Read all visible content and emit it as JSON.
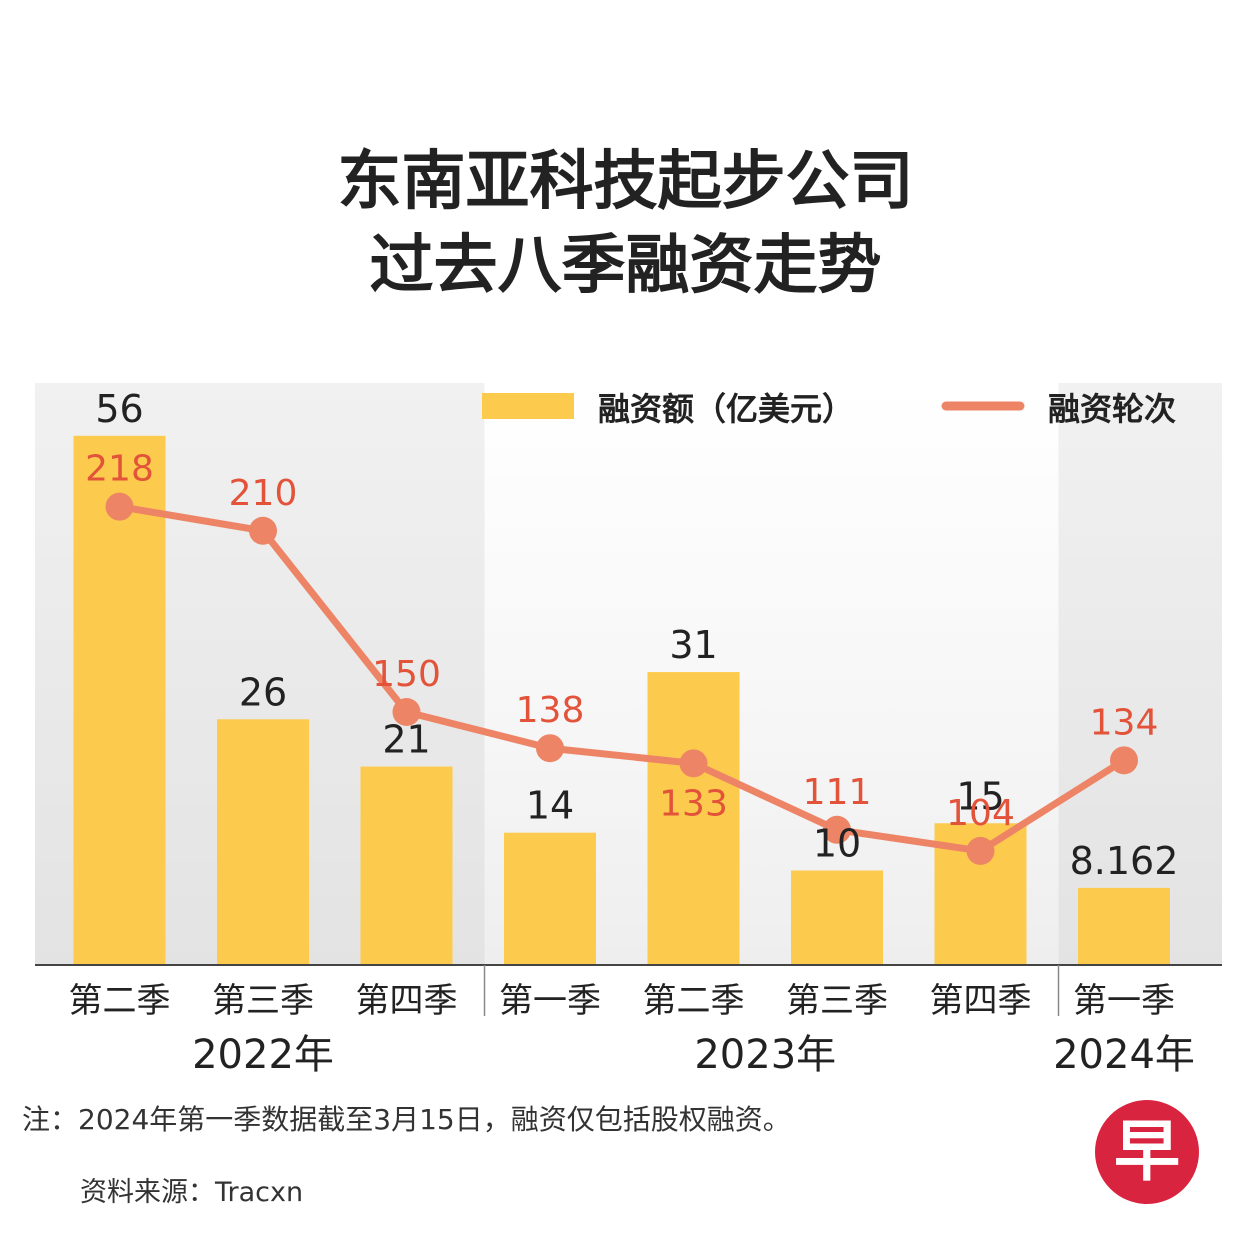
{
  "title_line1": "东南亚科技起步公司",
  "title_line2": "过去八季融资走势",
  "note": "注：2024年第一季数据截至3月15日，融资仅包括股权融资。",
  "source": "资料来源：Tracxn",
  "logo_text": "早",
  "colors": {
    "bar": "#fccb4e",
    "line": "#ee8466",
    "line_label": "#e2533a",
    "bar_label": "#222222",
    "axis": "#444444",
    "logo": "#d9243f"
  },
  "chart_data": {
    "type": "bar+line",
    "categories": [
      "第二季",
      "第三季",
      "第四季",
      "第一季",
      "第二季",
      "第三季",
      "第四季",
      "第一季"
    ],
    "years": [
      {
        "label": "2022年",
        "quarters": 3
      },
      {
        "label": "2023年",
        "quarters": 4
      },
      {
        "label": "2024年",
        "quarters": 1
      }
    ],
    "series": [
      {
        "name": "融资额（亿美元）",
        "type": "bar",
        "values": [
          56,
          26,
          21,
          14,
          31,
          10,
          15,
          8.162
        ]
      },
      {
        "name": "融资轮次",
        "type": "line",
        "values": [
          218,
          210,
          150,
          138,
          133,
          111,
          104,
          134
        ]
      }
    ],
    "legend_position": "top-right",
    "grid": false
  }
}
